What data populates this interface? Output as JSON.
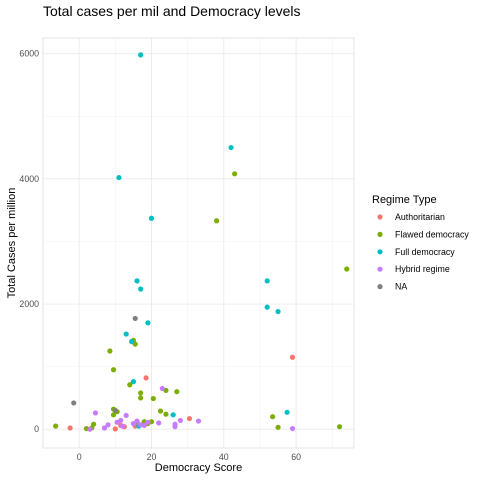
{
  "chart_data": {
    "type": "scatter",
    "title": "Total cases per mil and Democracy levels",
    "xlabel": "Democracy Score",
    "ylabel": "Total Cases per million",
    "xlim": [
      -10,
      76
    ],
    "ylim": [
      -300,
      6250
    ],
    "x_ticks": [
      0,
      20,
      40,
      60
    ],
    "y_ticks": [
      0,
      2000,
      4000,
      6000
    ],
    "grid": true,
    "legend": {
      "title": "Regime Type",
      "position": "right",
      "entries": [
        {
          "name": "Authoritarian",
          "color": "#F8766D"
        },
        {
          "name": "Flawed democracy",
          "color": "#7CAE00"
        },
        {
          "name": "Full democracy",
          "color": "#00BFC4"
        },
        {
          "name": "Hybrid regime",
          "color": "#C77CFF"
        },
        {
          "name": "NA",
          "color": "#7F7F7F"
        }
      ]
    },
    "series": [
      {
        "name": "Authoritarian",
        "color": "#F8766D",
        "points": [
          [
            -2.5,
            20
          ],
          [
            7,
            20
          ],
          [
            10,
            5
          ],
          [
            11.5,
            60
          ],
          [
            12.5,
            40
          ],
          [
            15.5,
            50
          ],
          [
            18.5,
            820
          ],
          [
            30.5,
            170
          ],
          [
            59,
            1150
          ]
        ]
      },
      {
        "name": "Flawed democracy",
        "color": "#7CAE00",
        "points": [
          [
            -6.5,
            50
          ],
          [
            2,
            10
          ],
          [
            3.5,
            20
          ],
          [
            4,
            80
          ],
          [
            8.5,
            1250
          ],
          [
            9.5,
            950
          ],
          [
            9.5,
            320
          ],
          [
            9.5,
            230
          ],
          [
            10.5,
            280
          ],
          [
            14,
            710
          ],
          [
            15,
            1420
          ],
          [
            15.5,
            1360
          ],
          [
            16,
            120
          ],
          [
            17,
            580
          ],
          [
            17,
            500
          ],
          [
            18,
            120
          ],
          [
            19,
            90
          ],
          [
            20,
            120
          ],
          [
            20.5,
            490
          ],
          [
            22.5,
            290
          ],
          [
            24,
            620
          ],
          [
            24,
            240
          ],
          [
            27,
            600
          ],
          [
            38,
            3330
          ],
          [
            43,
            4080
          ],
          [
            53.5,
            200
          ],
          [
            55,
            30
          ],
          [
            72,
            40
          ],
          [
            74,
            2560
          ]
        ]
      },
      {
        "name": "Full democracy",
        "color": "#00BFC4",
        "points": [
          [
            11,
            4020
          ],
          [
            13,
            1520
          ],
          [
            14.5,
            1400
          ],
          [
            15,
            760
          ],
          [
            16,
            2370
          ],
          [
            16.5,
            50
          ],
          [
            17,
            2240
          ],
          [
            17,
            5980
          ],
          [
            19,
            1700
          ],
          [
            20,
            3370
          ],
          [
            26,
            230
          ],
          [
            42,
            4500
          ],
          [
            52,
            2370
          ],
          [
            52,
            1950
          ],
          [
            55,
            1880
          ],
          [
            57.5,
            270
          ]
        ]
      },
      {
        "name": "Hybrid regime",
        "color": "#C77CFF",
        "points": [
          [
            3,
            0
          ],
          [
            4.5,
            260
          ],
          [
            7,
            20
          ],
          [
            8,
            70
          ],
          [
            10.5,
            110
          ],
          [
            11.5,
            140
          ],
          [
            12,
            50
          ],
          [
            13,
            220
          ],
          [
            15,
            90
          ],
          [
            16,
            130
          ],
          [
            17,
            70
          ],
          [
            18,
            60
          ],
          [
            19,
            110
          ],
          [
            22,
            100
          ],
          [
            23,
            650
          ],
          [
            26.5,
            40
          ],
          [
            26.5,
            80
          ],
          [
            28,
            140
          ],
          [
            33,
            130
          ],
          [
            59,
            10
          ]
        ]
      },
      {
        "name": "NA",
        "color": "#7F7F7F",
        "points": [
          [
            -1.5,
            420
          ],
          [
            10,
            300
          ],
          [
            15.5,
            1770
          ]
        ]
      }
    ]
  }
}
